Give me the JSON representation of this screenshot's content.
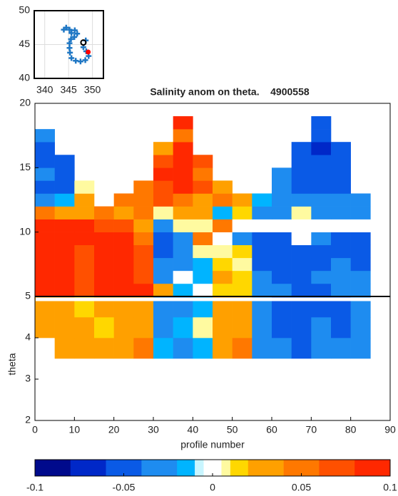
{
  "chart_data": [
    {
      "type": "scatter",
      "xlim": [
        337.8,
        352.3
      ],
      "ylim": [
        40,
        50
      ],
      "xticks": [
        340,
        345,
        350
      ],
      "yticks": [
        40,
        45,
        50
      ],
      "grid": true,
      "series": [
        {
          "color": "#1f77c4",
          "marker": "plus",
          "x": [
            344.0,
            344.5,
            345.2,
            345.6,
            346.3,
            346.8,
            346.2,
            345.5,
            345.2,
            345.2,
            345.3,
            345.6,
            346.5,
            347.5,
            348.5,
            349.2,
            348.7,
            348.1,
            348.6
          ],
          "y": [
            47.2,
            47.5,
            47.2,
            46.7,
            47.1,
            46.6,
            46.1,
            45.8,
            45.2,
            44.5,
            43.8,
            43.0,
            42.6,
            42.5,
            42.7,
            43.3,
            44.0,
            44.6,
            45.6
          ]
        },
        {
          "color": "#000000",
          "marker": "circle",
          "x": [
            348.1
          ],
          "y": [
            45.3
          ]
        },
        {
          "color": "#ff0000",
          "marker": "dot",
          "x": [
            349.1
          ],
          "y": [
            43.9
          ]
        }
      ]
    },
    {
      "type": "heatmap",
      "title": "Salinity anom on theta.    4900558",
      "xlim": [
        0,
        90
      ],
      "ylim": [
        5,
        20
      ],
      "yticks": [
        5,
        10,
        15,
        20
      ],
      "dx": 5,
      "dy": 1,
      "x": [
        2.5,
        7.5,
        12.5,
        17.5,
        22.5,
        27.5,
        32.5,
        37.5,
        42.5,
        47.5,
        52.5,
        57.5,
        62.5,
        67.5,
        72.5,
        77.5,
        82.5
      ],
      "y": [
        5.5,
        6.5,
        7.5,
        8.5,
        9.5,
        10.5,
        11.5,
        12.5,
        13.5,
        14.5,
        15.5,
        16.5,
        17.5,
        18.5
      ],
      "z": [
        [
          0.09,
          0.09,
          0.07,
          0.09,
          0.09,
          0.09,
          0.03,
          -0.01,
          0,
          0.02,
          0.015,
          -0.03,
          -0.03,
          -0.05,
          -0.04,
          -0.03,
          -0.03
        ],
        [
          0.09,
          0.09,
          0.07,
          0.09,
          0.09,
          0.07,
          -0.03,
          0,
          -0.015,
          0.03,
          0.02,
          -0.03,
          -0.05,
          -0.05,
          -0.03,
          -0.03,
          -0.03
        ],
        [
          0.09,
          0.09,
          0.07,
          0.09,
          0.09,
          0.07,
          -0.03,
          -0.02,
          -0.01,
          0.02,
          0.01,
          -0.04,
          -0.05,
          -0.04,
          -0.05,
          -0.03,
          -0.05
        ],
        [
          0.09,
          0.09,
          0.07,
          0.09,
          0.09,
          0.08,
          -0.05,
          -0.03,
          0.008,
          0.01,
          0.02,
          -0.05,
          -0.05,
          -0.05,
          -0.05,
          -0.05,
          -0.05
        ],
        [
          0.09,
          0.09,
          0.09,
          0.09,
          0.09,
          0.05,
          -0.05,
          -0.03,
          0.05,
          0,
          -0.03,
          -0.05,
          -0.05,
          0,
          -0.03,
          -0.05,
          -0.05
        ],
        [
          0.09,
          0.09,
          0.09,
          0.07,
          0.07,
          0.03,
          -0.03,
          0.008,
          0.01,
          0.05,
          0,
          0,
          0,
          0,
          0,
          0,
          0.002
        ],
        [
          0.05,
          0.03,
          0.03,
          0.05,
          0.03,
          0.05,
          0.01,
          0.03,
          0.03,
          -0.01,
          0.02,
          -0.03,
          -0.03,
          0.01,
          -0.02,
          -0.03,
          -0.03
        ],
        [
          -0.03,
          -0.015,
          0.03,
          null,
          0.05,
          0.05,
          0.07,
          0.05,
          0.03,
          0.05,
          0.03,
          -0.015,
          -0.03,
          -0.03,
          -0.03,
          -0.03,
          -0.03
        ],
        [
          -0.05,
          -0.05,
          0.007,
          null,
          null,
          0.05,
          0.07,
          0.09,
          0.07,
          0.03,
          null,
          null,
          -0.03,
          -0.05,
          -0.05,
          -0.05,
          null
        ],
        [
          -0.03,
          -0.05,
          null,
          null,
          null,
          null,
          0.09,
          0.09,
          0.05,
          null,
          null,
          null,
          -0.03,
          -0.05,
          -0.05,
          -0.05,
          null
        ],
        [
          -0.05,
          -0.05,
          null,
          null,
          null,
          null,
          0.07,
          0.09,
          0.07,
          null,
          null,
          null,
          null,
          -0.05,
          -0.05,
          -0.05,
          null
        ],
        [
          -0.05,
          null,
          null,
          null,
          null,
          null,
          0.03,
          0.09,
          null,
          null,
          null,
          null,
          null,
          -0.05,
          -0.07,
          -0.05,
          null
        ],
        [
          -0.03,
          null,
          null,
          null,
          null,
          null,
          null,
          0.05,
          null,
          null,
          null,
          null,
          null,
          null,
          -0.05,
          null,
          null
        ],
        [
          null,
          null,
          null,
          null,
          null,
          null,
          null,
          0.09,
          null,
          null,
          null,
          null,
          null,
          null,
          -0.05,
          null,
          null
        ]
      ]
    },
    {
      "type": "heatmap",
      "xlabel": "profile number",
      "ylabel": "theta",
      "xlim": [
        0,
        90
      ],
      "ylim": [
        2,
        5
      ],
      "xticks": [
        0,
        10,
        20,
        30,
        40,
        50,
        60,
        70,
        80,
        90
      ],
      "yticks": [
        2,
        3,
        4
      ],
      "dx": 5,
      "dy": 0.5,
      "x": [
        2.5,
        7.5,
        12.5,
        17.5,
        22.5,
        27.5,
        32.5,
        37.5,
        42.5,
        47.5,
        52.5,
        57.5,
        62.5,
        67.5,
        72.5,
        77.5,
        82.5
      ],
      "y": [
        3.75,
        4.25,
        4.75
      ],
      "z": [
        [
          null,
          0.04,
          0.04,
          0.04,
          0.04,
          0.05,
          -0.01,
          -0.02,
          -0.01,
          0.04,
          0.05,
          -0.03,
          -0.03,
          -0.05,
          -0.03,
          -0.03,
          -0.03
        ],
        [
          0.03,
          0.04,
          0.03,
          0.02,
          0.04,
          0.04,
          -0.02,
          -0.01,
          0.01,
          0.03,
          0.04,
          -0.03,
          -0.05,
          -0.05,
          -0.03,
          -0.05,
          -0.03
        ],
        [
          0.03,
          0.04,
          0.02,
          0.04,
          0.04,
          0.04,
          -0.03,
          -0.02,
          -0.015,
          0.04,
          0.03,
          -0.03,
          -0.05,
          -0.05,
          -0.04,
          -0.05,
          -0.03
        ]
      ]
    },
    {
      "type": "colorbar",
      "xlim": [
        -0.1,
        0.1
      ],
      "xticks": [
        -0.1,
        -0.05,
        0,
        0.05,
        0.1
      ],
      "levels": [
        -0.1,
        -0.08,
        -0.06,
        -0.04,
        -0.02,
        -0.01,
        -0.005,
        0.005,
        0.01,
        0.02,
        0.04,
        0.06,
        0.08,
        0.1
      ],
      "colors": [
        "#000a8c",
        "#0028c8",
        "#0a5ae6",
        "#1e8cf0",
        "#00b4ff",
        "#c8f5ff",
        "#ffffff",
        "#fffaa0",
        "#ffd700",
        "#ffa000",
        "#ff7800",
        "#ff5000",
        "#ff2800"
      ]
    }
  ]
}
